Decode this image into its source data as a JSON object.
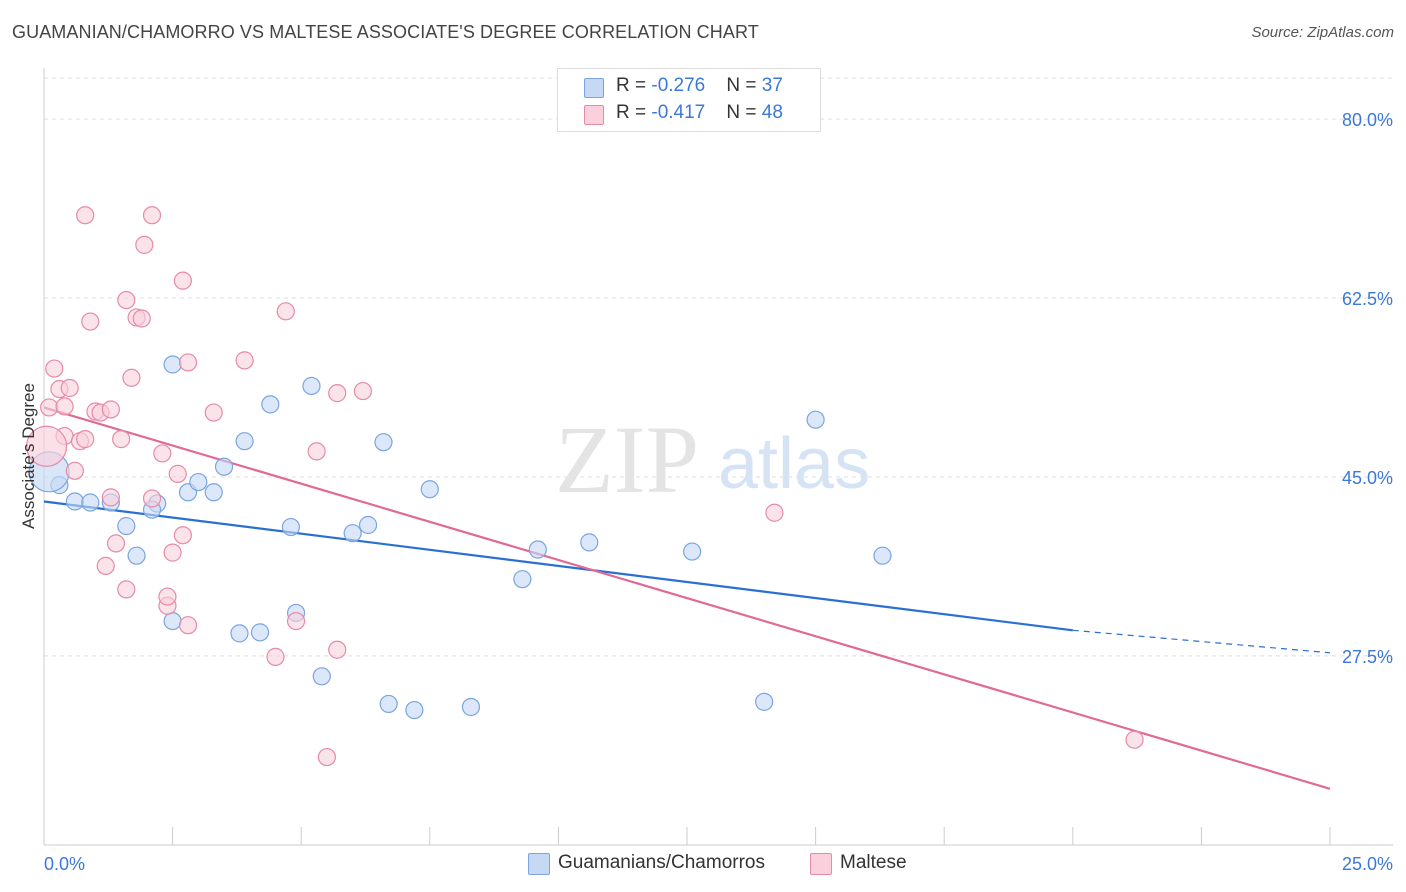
{
  "title": "GUAMANIAN/CHAMORRO VS MALTESE ASSOCIATE'S DEGREE CORRELATION CHART",
  "source": "Source: ZipAtlas.com",
  "watermark": {
    "zip": "ZIP",
    "atlas": "atlas"
  },
  "legend": {
    "series": [
      {
        "r_label": "R = ",
        "r_value": "-0.276",
        "n_label": "N = ",
        "n_value": "37"
      },
      {
        "r_label": "R = ",
        "r_value": "-0.417",
        "n_label": "N = ",
        "n_value": "48"
      }
    ]
  },
  "colors": {
    "blue_fill": "#c5d9f5",
    "blue_stroke": "#7aa5e0",
    "blue_line": "#2a6fd1",
    "pink_fill": "#f9d0dc",
    "pink_stroke": "#e68aa8",
    "pink_line": "#e06a95",
    "tick_label": "#3b78d8",
    "grid": "#dddddd"
  },
  "chart_data": {
    "type": "scatter",
    "title": "GUAMANIAN/CHAMORRO VS MALTESE ASSOCIATE'S DEGREE CORRELATION CHART",
    "xlabel": "",
    "ylabel": "Associate's Degree",
    "xlim": [
      0,
      25
    ],
    "ylim": [
      9.0,
      85.0
    ],
    "x_tick_labels": [
      "0.0%",
      "25.0%"
    ],
    "y_ticks": [
      27.5,
      45.0,
      62.5,
      80.0
    ],
    "y_tick_labels": [
      "27.5%",
      "45.0%",
      "62.5%",
      "80.0%"
    ],
    "grid": true,
    "legend_position": "top-center",
    "series": [
      {
        "name": "Guamanians/Chamorros",
        "color": "#7aa5e0",
        "trend": {
          "x": [
            0,
            20
          ],
          "y": [
            42.6,
            30.0
          ],
          "dashed_to": [
            25,
            27.8
          ]
        },
        "points": [
          [
            0.3,
            44.2
          ],
          [
            0.6,
            42.6
          ],
          [
            0.9,
            42.5
          ],
          [
            1.3,
            42.5
          ],
          [
            1.6,
            40.2
          ],
          [
            2.2,
            42.4
          ],
          [
            1.8,
            37.3
          ],
          [
            2.1,
            41.8
          ],
          [
            2.5,
            30.9
          ],
          [
            2.5,
            56.0
          ],
          [
            2.8,
            43.5
          ],
          [
            3.0,
            44.5
          ],
          [
            3.3,
            43.5
          ],
          [
            3.5,
            46.0
          ],
          [
            3.8,
            29.7
          ],
          [
            3.9,
            48.5
          ],
          [
            4.2,
            29.8
          ],
          [
            4.4,
            52.1
          ],
          [
            4.8,
            40.1
          ],
          [
            4.9,
            31.7
          ],
          [
            5.2,
            53.9
          ],
          [
            5.4,
            25.5
          ],
          [
            6.0,
            39.5
          ],
          [
            6.3,
            40.3
          ],
          [
            6.6,
            48.4
          ],
          [
            6.7,
            22.8
          ],
          [
            7.2,
            22.2
          ],
          [
            7.5,
            43.8
          ],
          [
            8.3,
            22.5
          ],
          [
            9.3,
            35.0
          ],
          [
            9.6,
            37.9
          ],
          [
            10.6,
            38.6
          ],
          [
            12.6,
            37.7
          ],
          [
            14.0,
            23.0
          ],
          [
            15.0,
            50.6
          ],
          [
            16.3,
            37.3
          ],
          [
            0.1,
            45.5
          ]
        ]
      },
      {
        "name": "Maltese",
        "color": "#e68aa8",
        "trend": {
          "x": [
            0,
            25
          ],
          "y": [
            51.8,
            14.5
          ]
        },
        "points": [
          [
            0.1,
            51.8
          ],
          [
            0.2,
            55.6
          ],
          [
            0.3,
            53.6
          ],
          [
            0.4,
            51.9
          ],
          [
            0.4,
            49.0
          ],
          [
            0.5,
            53.7
          ],
          [
            0.6,
            45.6
          ],
          [
            0.7,
            48.5
          ],
          [
            0.8,
            48.7
          ],
          [
            0.8,
            70.6
          ],
          [
            0.9,
            60.2
          ],
          [
            1.0,
            51.4
          ],
          [
            1.1,
            51.3
          ],
          [
            1.2,
            36.3
          ],
          [
            1.3,
            43.0
          ],
          [
            1.3,
            51.6
          ],
          [
            1.4,
            38.5
          ],
          [
            1.5,
            48.7
          ],
          [
            1.6,
            34.0
          ],
          [
            1.6,
            62.3
          ],
          [
            1.7,
            54.7
          ],
          [
            1.8,
            60.6
          ],
          [
            1.9,
            60.5
          ],
          [
            1.95,
            67.7
          ],
          [
            2.1,
            42.9
          ],
          [
            2.1,
            70.6
          ],
          [
            2.3,
            47.3
          ],
          [
            2.4,
            32.4
          ],
          [
            2.4,
            33.3
          ],
          [
            2.5,
            37.6
          ],
          [
            2.6,
            45.3
          ],
          [
            2.7,
            39.3
          ],
          [
            2.7,
            64.2
          ],
          [
            2.8,
            56.2
          ],
          [
            2.8,
            30.5
          ],
          [
            3.3,
            51.3
          ],
          [
            3.9,
            56.4
          ],
          [
            4.5,
            27.4
          ],
          [
            4.7,
            61.2
          ],
          [
            4.9,
            30.9
          ],
          [
            5.3,
            47.5
          ],
          [
            5.5,
            17.6
          ],
          [
            5.7,
            28.1
          ],
          [
            5.7,
            53.2
          ],
          [
            6.2,
            53.4
          ],
          [
            14.2,
            41.5
          ],
          [
            21.2,
            19.3
          ],
          [
            0.05,
            48.0
          ]
        ]
      }
    ]
  },
  "bottom_legend": [
    "Guamanians/Chamorros",
    "Maltese"
  ]
}
